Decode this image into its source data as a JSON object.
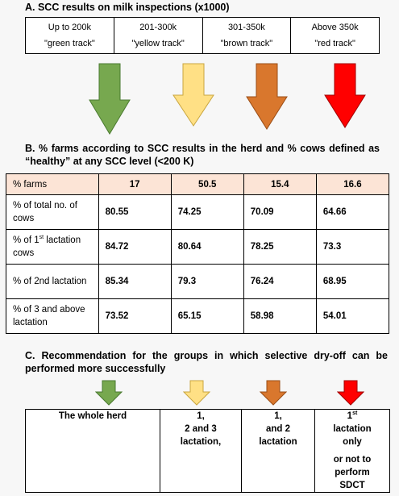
{
  "sectionA": {
    "title": "A.  SCC results on milk inspections (x1000)",
    "ranges": [
      {
        "range": "Up to 200k",
        "track": "\"green track\"",
        "color": "#77a84f"
      },
      {
        "range": "201-300k",
        "track": "\"yellow track\"",
        "color": "#ffe085"
      },
      {
        "range": "301-350k",
        "track": "\"brown track\"",
        "color": "#d9772d"
      },
      {
        "range": "Above 350k",
        "track": "\"red track\"",
        "color": "#ff0000"
      }
    ]
  },
  "sectionB": {
    "title": "B.  % farms according to SCC results in the herd and % cows defined as “healthy” at any SCC level (<200 K)",
    "rows": [
      {
        "label": "% farms",
        "values": [
          "17",
          "50.5",
          "15.4",
          "16.6"
        ]
      },
      {
        "label": "% of total no. of cows",
        "values": [
          "80.55",
          "74.25",
          "70.09",
          "64.66"
        ]
      },
      {
        "label_pre": "% of 1",
        "label_sup": "st",
        "label_post": " lactation cows",
        "values": [
          "84.72",
          "80.64",
          "78.25",
          "73.3"
        ]
      },
      {
        "label": "% of 2nd lactation",
        "values": [
          "85.34",
          "79.3",
          "76.24",
          "68.95"
        ]
      },
      {
        "label": "% of 3 and above lactation",
        "values": [
          "73.52",
          "65.15",
          "58.98",
          "54.01"
        ]
      }
    ]
  },
  "sectionC": {
    "title": "C.  Recommendation for the groups in which selective dry-off can be performed more successfully",
    "col1": "The whole herd",
    "col2": [
      "1,",
      "2 and 3 lactation,"
    ],
    "col3": [
      "1,",
      "and 2 lactation"
    ],
    "col4": {
      "sup_base": "1",
      "sup": "st",
      "lines": [
        "lactation only",
        "or not to perform SDCT"
      ]
    }
  }
}
